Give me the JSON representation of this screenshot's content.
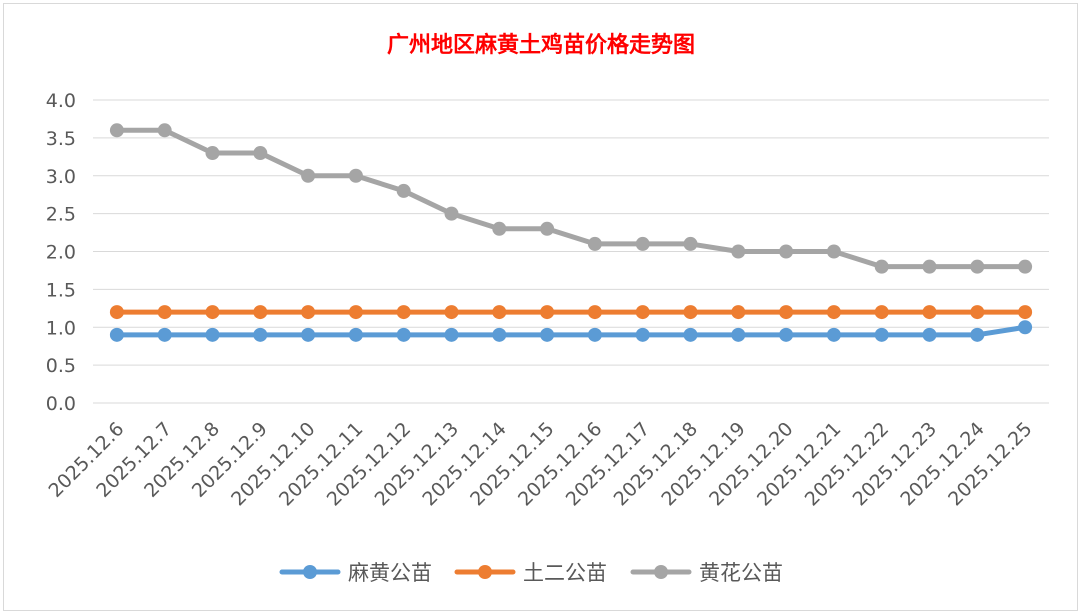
{
  "chart_data": {
    "type": "line",
    "title": "广州地区麻黄土鸡苗价格走势图",
    "xlabel": "",
    "ylabel": "",
    "ylim": [
      0,
      4
    ],
    "yticks": [
      "0.0",
      "0.5",
      "1.0",
      "1.5",
      "2.0",
      "2.5",
      "3.0",
      "3.5",
      "4.0"
    ],
    "grid": true,
    "legend_position": "bottom",
    "categories": [
      "2025.12.6",
      "2025.12.7",
      "2025.12.8",
      "2025.12.9",
      "2025.12.10",
      "2025.12.11",
      "2025.12.12",
      "2025.12.13",
      "2025.12.14",
      "2025.12.15",
      "2025.12.16",
      "2025.12.17",
      "2025.12.18",
      "2025.12.19",
      "2025.12.20",
      "2025.12.21",
      "2025.12.22",
      "2025.12.23",
      "2025.12.24",
      "2025.12.25"
    ],
    "series": [
      {
        "name": "麻黄公苗",
        "color": "#5b9bd5",
        "values": [
          0.9,
          0.9,
          0.9,
          0.9,
          0.9,
          0.9,
          0.9,
          0.9,
          0.9,
          0.9,
          0.9,
          0.9,
          0.9,
          0.9,
          0.9,
          0.9,
          0.9,
          0.9,
          0.9,
          1.0
        ]
      },
      {
        "name": "土二公苗",
        "color": "#ed7d31",
        "values": [
          1.2,
          1.2,
          1.2,
          1.2,
          1.2,
          1.2,
          1.2,
          1.2,
          1.2,
          1.2,
          1.2,
          1.2,
          1.2,
          1.2,
          1.2,
          1.2,
          1.2,
          1.2,
          1.2,
          1.2
        ]
      },
      {
        "name": "黄花公苗",
        "color": "#a5a5a5",
        "values": [
          3.6,
          3.6,
          3.3,
          3.3,
          3.0,
          3.0,
          2.8,
          2.5,
          2.3,
          2.3,
          2.1,
          2.1,
          2.1,
          2.0,
          2.0,
          2.0,
          1.8,
          1.8,
          1.8,
          1.8
        ]
      }
    ]
  }
}
